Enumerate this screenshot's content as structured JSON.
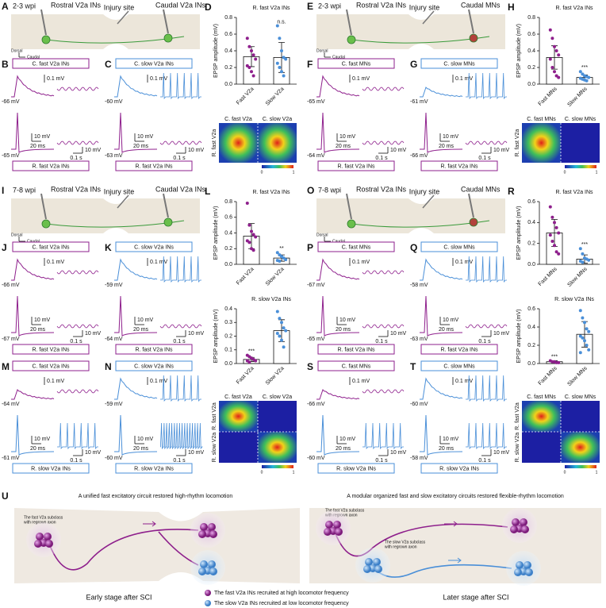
{
  "schematics": [
    {
      "panel": "A",
      "stage": "2-3 wpi",
      "rostral": "Rostral V2a INs",
      "injury": "Injury site",
      "caudal": "Caudal V2a INs",
      "dorsal": "Dorsal",
      "caudal_axis": "Caudal",
      "cell_colors": [
        "#6abf4b",
        "#6abf4b"
      ]
    },
    {
      "panel": "E",
      "stage": "2-3 wpi",
      "rostral": "Rostral V2a INs",
      "injury": "Injury site",
      "caudal": "Caudal MNs",
      "dorsal": "Dorsal",
      "caudal_axis": "Caudal",
      "cell_colors": [
        "#6abf4b",
        "#b2413b"
      ]
    },
    {
      "panel": "I",
      "stage": "7-8 wpi",
      "rostral": "Rostral V2a INs",
      "injury": "Injury site",
      "caudal": "Caudal V2a INs",
      "dorsal": "Dorsal",
      "caudal_axis": "Caudal",
      "cell_colors": [
        "#6abf4b",
        "#6abf4b"
      ]
    },
    {
      "panel": "O",
      "stage": "7-8 wpi",
      "rostral": "Rostral V2a INs",
      "injury": "Injury site",
      "caudal": "Caudal MNs",
      "dorsal": "Dorsal",
      "caudal_axis": "Caudal",
      "cell_colors": [
        "#6abf4b",
        "#b2413b"
      ]
    }
  ],
  "traces": [
    {
      "panel": "B",
      "top_box": "C. fast V2a INs",
      "top_scale": "0.1 mV",
      "top_rest": "-66 mV",
      "bottom_rest": "-65 mV",
      "bottom_scale_v": "10 mV",
      "bottom_scale_t": "20 ms",
      "right_scale_v": "10 mV",
      "right_scale_t": "0.1 s",
      "bottom_box": "R. fast V2a INs",
      "top_color": "#8e1f8c",
      "bottom_color": "#8e1f8c"
    },
    {
      "panel": "C",
      "top_box": "C. slow V2a INs",
      "top_scale": "0.1 mV",
      "top_rest": "-60 mV",
      "bottom_rest": "-63 mV",
      "bottom_scale_v": "10 mV",
      "bottom_scale_t": "20 ms",
      "right_scale_v": "10 mV",
      "right_scale_t": "0.1 s",
      "bottom_box": "R. fast V2a INs",
      "top_color": "#4a8fd8",
      "bottom_color": "#8e1f8c"
    },
    {
      "panel": "F",
      "top_box": "C. fast MNs",
      "top_scale": "0.1 mV",
      "top_rest": "-65 mV",
      "bottom_rest": "-64 mV",
      "bottom_scale_v": "10 mV",
      "bottom_scale_t": "20 ms",
      "right_scale_v": "10 mV",
      "right_scale_t": "0.1 s",
      "bottom_box": "R. fast V2a INs",
      "top_color": "#8e1f8c",
      "bottom_color": "#8e1f8c"
    },
    {
      "panel": "G",
      "top_box": "C. slow MNs",
      "top_scale": "0.1 mV",
      "top_rest": "-61 mV",
      "bottom_rest": "-66 mV",
      "bottom_scale_v": "10 mV",
      "bottom_scale_t": "20 ms",
      "right_scale_v": "10 mV",
      "right_scale_t": "0.1 s",
      "bottom_box": "R. fast V2a INs",
      "top_color": "#4a8fd8",
      "bottom_color": "#8e1f8c"
    },
    {
      "panel": "J",
      "top_box": "C. fast V2a INs",
      "top_scale": "0.1 mV",
      "top_rest": "-66 mV",
      "bottom_rest": "-67 mV",
      "bottom_scale_v": "10 mV",
      "bottom_scale_t": "20 ms",
      "right_scale_v": "10 mV",
      "right_scale_t": "0.1 s",
      "bottom_box": "R. fast V2a INs",
      "top_color": "#8e1f8c",
      "bottom_color": "#8e1f8c"
    },
    {
      "panel": "K",
      "top_box": "C. slow V2a INs",
      "top_scale": "0.1 mV",
      "top_rest": "-59 mV",
      "bottom_rest": "-64 mV",
      "bottom_scale_v": "10 mV",
      "bottom_scale_t": "20 ms",
      "right_scale_v": "10 mV",
      "right_scale_t": "0.1 s",
      "bottom_box": "R. fast V2a INs",
      "top_color": "#4a8fd8",
      "bottom_color": "#8e1f8c"
    },
    {
      "panel": "P",
      "top_box": "C. fast MNs",
      "top_scale": "0.1 mV",
      "top_rest": "-67 mV",
      "bottom_rest": "-65 mV",
      "bottom_scale_v": "10 mV",
      "bottom_scale_t": "20 ms",
      "right_scale_v": "10 mV",
      "right_scale_t": "0.1 s",
      "bottom_box": "R. fast V2a INs",
      "top_color": "#8e1f8c",
      "bottom_color": "#8e1f8c"
    },
    {
      "panel": "Q",
      "top_box": "C. slow MNs",
      "top_scale": "0.1 mV",
      "top_rest": "-58 mV",
      "bottom_rest": "-63 mV",
      "bottom_scale_v": "10 mV",
      "bottom_scale_t": "20 ms",
      "right_scale_v": "10 mV",
      "right_scale_t": "0.1 s",
      "bottom_box": "R. fast V2a INs",
      "top_color": "#4a8fd8",
      "bottom_color": "#8e1f8c"
    },
    {
      "panel": "M",
      "top_box": "C. fast V2a INs",
      "top_scale": "0.1 mV",
      "top_rest": "-64 mV",
      "bottom_rest": "-61 mV",
      "bottom_scale_v": "10 mV",
      "bottom_scale_t": "20 ms",
      "right_scale_v": "10 mV",
      "right_scale_t": "0.1 s",
      "bottom_box": "R. slow V2a INs",
      "top_color": "#8e1f8c",
      "bottom_color": "#4a8fd8"
    },
    {
      "panel": "N",
      "top_box": "C. slow V2a INs",
      "top_scale": "0.1 mV",
      "top_rest": "-59 mV",
      "bottom_rest": "-60 mV",
      "bottom_scale_v": "10 mV",
      "bottom_scale_t": "20 ms",
      "right_scale_v": "10 mV",
      "right_scale_t": "0.1 s",
      "bottom_box": "R. slow V2a INs",
      "top_color": "#4a8fd8",
      "bottom_color": "#4a8fd8"
    },
    {
      "panel": "S",
      "top_box": "C. fast MNs",
      "top_scale": "0.1 mV",
      "top_rest": "-66 mV",
      "bottom_rest": "-60 mV",
      "bottom_scale_v": "10 mV",
      "bottom_scale_t": "20 ms",
      "right_scale_v": "10 mV",
      "right_scale_t": "0.1 s",
      "bottom_box": "R. slow V2a INs",
      "top_color": "#8e1f8c",
      "bottom_color": "#4a8fd8"
    },
    {
      "panel": "T",
      "top_box": "C. slow MNs",
      "top_scale": "0.1 mV",
      "top_rest": "-60 mV",
      "bottom_rest": "-58 mV",
      "bottom_scale_v": "10 mV",
      "bottom_scale_t": "20 ms",
      "right_scale_v": "10 mV",
      "right_scale_t": "0.1 s",
      "bottom_box": "R. slow V2a INs",
      "top_color": "#4a8fd8",
      "bottom_color": "#4a8fd8"
    }
  ],
  "chart_data": [
    {
      "type": "bar",
      "panel": "D",
      "title": "R. fast V2a INs",
      "title_color": "#8e1f8c",
      "ylabel": "EPSP amplitude (mV)",
      "categories": [
        "Fast V2a",
        "Slow V2a"
      ],
      "values": [
        0.33,
        0.32
      ],
      "errors": [
        0.12,
        0.18
      ],
      "colors": [
        "#8e1f8c",
        "#4a8fd8"
      ],
      "points": [
        [
          0.55,
          0.45,
          0.4,
          0.35,
          0.3,
          0.22,
          0.2,
          0.15,
          0.1
        ],
        [
          0.7,
          0.55,
          0.4,
          0.32,
          0.3,
          0.25,
          0.2,
          0.15,
          0.1
        ]
      ],
      "significance": [
        null,
        "n.s."
      ],
      "ylim": [
        0,
        0.8
      ],
      "yticks": [
        {
          "value": 0,
          "label": "0.0"
        },
        0.2,
        0.4,
        0.6,
        0.8
      ]
    },
    {
      "type": "bar",
      "panel": "H",
      "title": "R. fast V2a INs",
      "title_color": "#8e1f8c",
      "ylabel": "EPSP amplitude (mV)",
      "categories": [
        "Fast MNs",
        "Slow MNs"
      ],
      "values": [
        0.32,
        0.08
      ],
      "errors": [
        0.14,
        0.03
      ],
      "colors": [
        "#8e1f8c",
        "#4a8fd8"
      ],
      "points": [
        [
          0.65,
          0.55,
          0.45,
          0.4,
          0.35,
          0.3,
          0.2,
          0.15,
          0.1,
          0.08
        ],
        [
          0.15,
          0.12,
          0.1,
          0.09,
          0.08,
          0.07,
          0.06,
          0.05,
          0.04
        ]
      ],
      "significance": [
        null,
        "***"
      ],
      "ylim": [
        0,
        0.8
      ],
      "yticks": [
        {
          "value": 0,
          "label": "0.0"
        },
        0.2,
        0.4,
        0.6,
        0.8
      ]
    },
    {
      "type": "bar",
      "panel": "L",
      "title": "R. fast V2a INs",
      "title_color": "#8e1f8c",
      "ylabel": "EPSP amplitude (mV)",
      "categories": [
        "Fast V2a",
        "Slow V2a"
      ],
      "values": [
        0.36,
        0.08
      ],
      "errors": [
        0.16,
        0.04
      ],
      "colors": [
        "#8e1f8c",
        "#4a8fd8"
      ],
      "points": [
        [
          0.78,
          0.5,
          0.42,
          0.38,
          0.35,
          0.3,
          0.28,
          0.2,
          0.18
        ],
        [
          0.15,
          0.12,
          0.1,
          0.08,
          0.06,
          0.05,
          0.04
        ]
      ],
      "significance": [
        null,
        "**"
      ],
      "ylim": [
        0,
        0.8
      ],
      "yticks": [
        {
          "value": 0,
          "label": "0.0"
        },
        0.2,
        0.4,
        0.6,
        0.8
      ]
    },
    {
      "type": "bar",
      "title": "R. slow V2a INs",
      "title_color": "#4a8fd8",
      "ylabel": "EPSP amplitude (mV)",
      "categories": [
        "Fast V2a",
        "Slow V2a"
      ],
      "values": [
        0.03,
        0.24
      ],
      "errors": [
        0.015,
        0.08
      ],
      "colors": [
        "#8e1f8c",
        "#4a8fd8"
      ],
      "points": [
        [
          0.06,
          0.05,
          0.04,
          0.03,
          0.02,
          0.02,
          0.01
        ],
        [
          0.38,
          0.33,
          0.3,
          0.26,
          0.24,
          0.22,
          0.2,
          0.17,
          0.12
        ]
      ],
      "significance": [
        "***",
        null
      ],
      "ylim": [
        0,
        0.4
      ],
      "yticks": [
        {
          "value": 0,
          "label": "0.0"
        },
        0.1,
        0.2,
        0.3,
        0.4
      ]
    },
    {
      "type": "bar",
      "panel": "R",
      "title": "R. fast V2a INs",
      "title_color": "#8e1f8c",
      "ylabel": "EPSP amplitude (mV)",
      "categories": [
        "Fast MNs",
        "Slow MNs"
      ],
      "values": [
        0.3,
        0.05
      ],
      "errors": [
        0.13,
        0.04
      ],
      "colors": [
        "#8e1f8c",
        "#4a8fd8"
      ],
      "points": [
        [
          0.55,
          0.45,
          0.4,
          0.35,
          0.3,
          0.28,
          0.22,
          0.18,
          0.12,
          0.1
        ],
        [
          0.15,
          0.1,
          0.06,
          0.05,
          0.04,
          0.03,
          0.02
        ]
      ],
      "significance": [
        null,
        "***"
      ],
      "ylim": [
        0,
        0.6
      ],
      "yticks": [
        {
          "value": 0,
          "label": "0.0"
        },
        0.2,
        0.4,
        0.6
      ]
    },
    {
      "type": "bar",
      "title": "R. slow V2a INs",
      "title_color": "#4a8fd8",
      "ylabel": "EPSP amplitude (mV)",
      "categories": [
        "Fast MNs",
        "Slow MNs"
      ],
      "values": [
        0.02,
        0.32
      ],
      "errors": [
        0.01,
        0.14
      ],
      "colors": [
        "#8e1f8c",
        "#4a8fd8"
      ],
      "points": [
        [
          0.03,
          0.02,
          0.02,
          0.01,
          0.01
        ],
        [
          0.58,
          0.5,
          0.45,
          0.38,
          0.35,
          0.3,
          0.28,
          0.25,
          0.2,
          0.15,
          0.12
        ]
      ],
      "significance": [
        "***",
        null
      ],
      "ylim": [
        0,
        0.6
      ],
      "yticks": [
        {
          "value": 0,
          "label": "0.0"
        },
        0.2,
        0.4,
        0.6
      ]
    }
  ],
  "heatmaps": [
    {
      "col_labels": [
        "C. fast V2a",
        "C. slow V2a"
      ],
      "row_labels": [
        "R. fast V2a"
      ],
      "colorbar_ticks": [
        0,
        1
      ]
    },
    {
      "col_labels": [
        "C. fast MNs",
        "C. slow MNs"
      ],
      "row_labels": [
        "R. fast V2a"
      ],
      "colorbar_ticks": [
        0,
        1
      ]
    },
    {
      "col_labels": [
        "C. fast V2a",
        "C. slow V2a"
      ],
      "row_labels": [
        "R. fast V2a",
        "R. slow V2a"
      ],
      "colorbar_ticks": [
        0,
        1
      ]
    },
    {
      "col_labels": [
        "C. fast MNs",
        "C. slow MNs"
      ],
      "row_labels": [
        "R. fast V2a",
        "R. slow V2a"
      ],
      "colorbar_ticks": [
        0,
        1
      ]
    }
  ],
  "summary": {
    "panel": "U",
    "left_title": "A unified fast excitatory circuit restored high-rhythm locomotion",
    "right_title": "A modular organized fast and slow excitatory circuits restored flexible-rhythm locomotion",
    "left_note": [
      "The fast V2a subclass",
      "with regrown axon"
    ],
    "right_fast_note": [
      "The fast V2a subclass",
      "with regrown axon"
    ],
    "right_slow_note": [
      "The slow V2a subclass",
      "with regrown axon"
    ],
    "left_stage": "Early stage after SCI",
    "right_stage": "Later stage after SCI",
    "legend_fast": "The fast V2a INs recruited at high locomotor frequency",
    "legend_slow": "The slow V2a INs recruited at low locomotor frequency"
  }
}
